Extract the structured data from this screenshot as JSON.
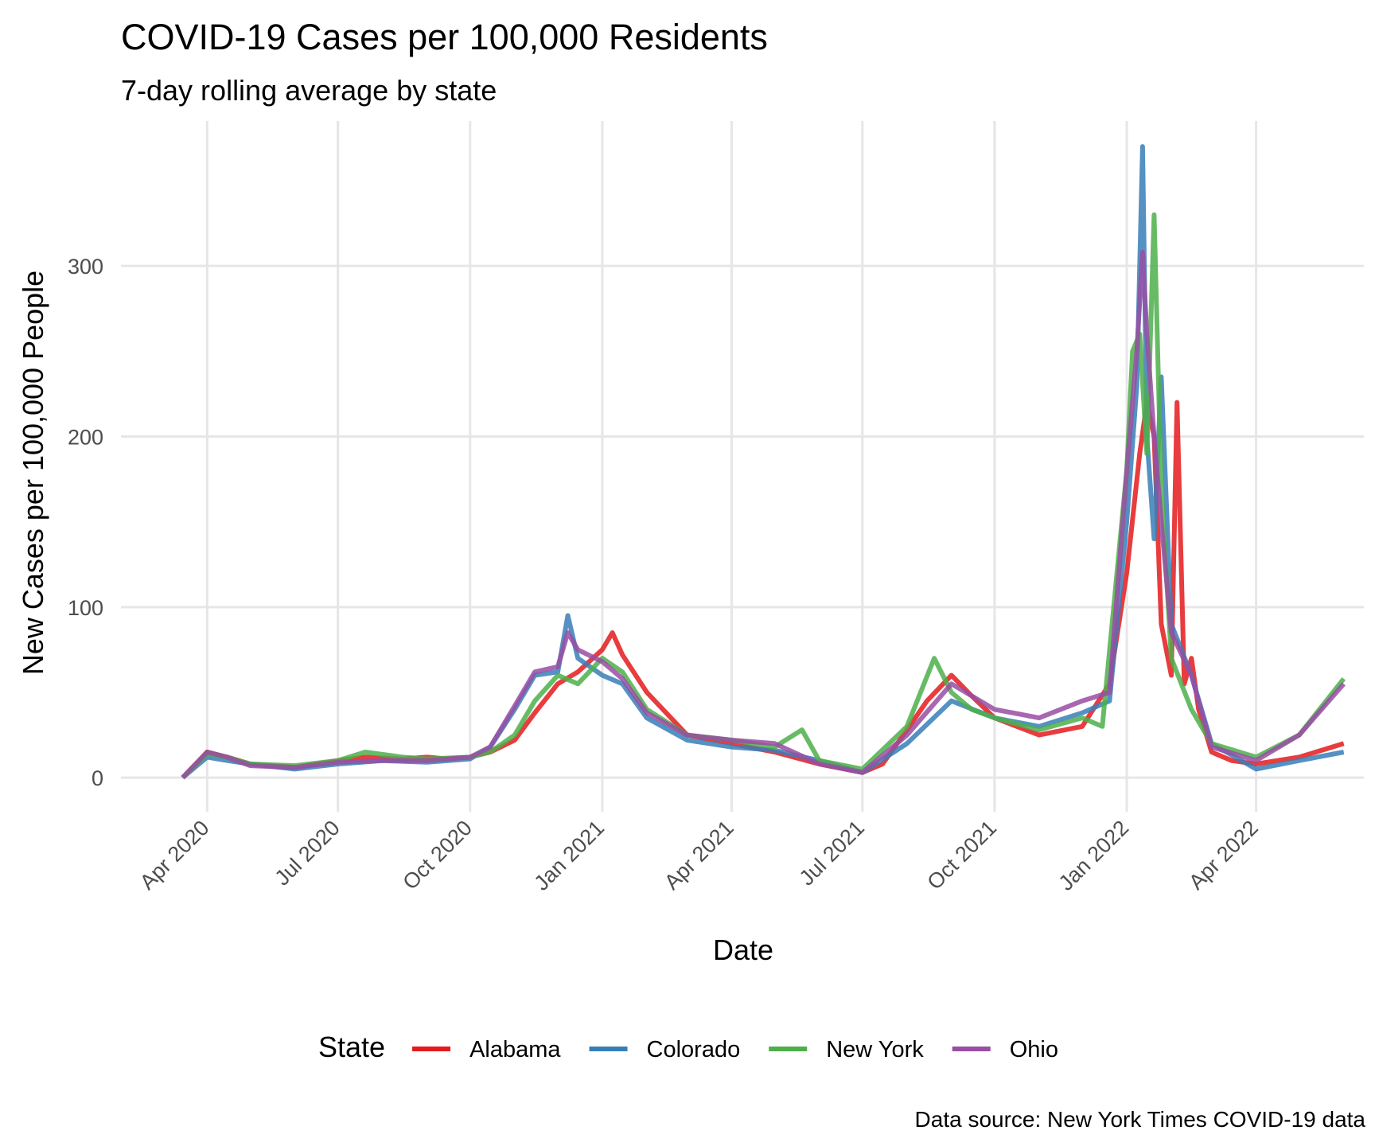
{
  "chart_data": {
    "type": "line",
    "title": "COVID-19 Cases per 100,000 Residents",
    "subtitle": "7-day rolling average by state",
    "xlabel": "Date",
    "ylabel": "New Cases per 100,000 People",
    "caption": "Data source: New York Times COVID-19 data",
    "grid": true,
    "legend_position": "bottom",
    "legend_title": "State",
    "x_ticks": [
      "2020-04-01",
      "2020-07-01",
      "2020-10-01",
      "2021-01-01",
      "2021-04-01",
      "2021-07-01",
      "2021-10-01",
      "2022-01-01",
      "2022-04-01"
    ],
    "x_tick_labels": [
      "Apr 2020",
      "Jul 2020",
      "Oct 2020",
      "Jan 2021",
      "Apr 2021",
      "Jul 2021",
      "Oct 2021",
      "Jan 2022",
      "Apr 2022"
    ],
    "xlim": [
      "2020-02-01",
      "2022-06-15"
    ],
    "y_ticks": [
      0,
      100,
      200,
      300
    ],
    "ylim": [
      -20,
      385
    ],
    "series": [
      {
        "name": "Alabama",
        "color": "#E41A1C",
        "x": [
          "2020-03-15",
          "2020-04-01",
          "2020-04-15",
          "2020-05-01",
          "2020-06-01",
          "2020-07-01",
          "2020-07-20",
          "2020-08-15",
          "2020-09-01",
          "2020-09-15",
          "2020-10-01",
          "2020-10-15",
          "2020-11-01",
          "2020-11-15",
          "2020-12-01",
          "2020-12-15",
          "2021-01-01",
          "2021-01-08",
          "2021-01-15",
          "2021-02-01",
          "2021-03-01",
          "2021-04-01",
          "2021-05-01",
          "2021-06-01",
          "2021-07-01",
          "2021-07-15",
          "2021-08-01",
          "2021-08-15",
          "2021-09-01",
          "2021-09-15",
          "2021-10-01",
          "2021-11-01",
          "2021-12-01",
          "2021-12-20",
          "2022-01-01",
          "2022-01-10",
          "2022-01-15",
          "2022-01-20",
          "2022-01-25",
          "2022-02-01",
          "2022-02-05",
          "2022-02-10",
          "2022-02-15",
          "2022-02-20",
          "2022-03-01",
          "2022-03-15",
          "2022-04-01",
          "2022-05-01",
          "2022-06-01"
        ],
        "y": [
          0,
          15,
          12,
          8,
          6,
          10,
          12,
          11,
          12,
          11,
          12,
          15,
          22,
          38,
          55,
          62,
          75,
          85,
          72,
          50,
          25,
          20,
          15,
          8,
          3,
          8,
          28,
          45,
          60,
          48,
          35,
          25,
          30,
          55,
          120,
          190,
          220,
          200,
          90,
          60,
          220,
          55,
          70,
          40,
          15,
          10,
          8,
          12,
          20
        ]
      },
      {
        "name": "Colorado",
        "color": "#377EB8",
        "x": [
          "2020-03-15",
          "2020-04-01",
          "2020-04-15",
          "2020-05-01",
          "2020-06-01",
          "2020-07-01",
          "2020-08-01",
          "2020-09-01",
          "2020-10-01",
          "2020-10-15",
          "2020-11-01",
          "2020-11-15",
          "2020-12-01",
          "2020-12-08",
          "2020-12-15",
          "2021-01-01",
          "2021-01-15",
          "2021-02-01",
          "2021-03-01",
          "2021-04-01",
          "2021-05-01",
          "2021-06-01",
          "2021-07-01",
          "2021-08-01",
          "2021-09-01",
          "2021-10-01",
          "2021-11-01",
          "2021-12-01",
          "2021-12-20",
          "2022-01-01",
          "2022-01-08",
          "2022-01-12",
          "2022-01-15",
          "2022-01-20",
          "2022-01-25",
          "2022-02-01",
          "2022-02-15",
          "2022-03-01",
          "2022-04-01",
          "2022-05-01",
          "2022-06-01"
        ],
        "y": [
          0,
          12,
          10,
          8,
          5,
          8,
          10,
          9,
          11,
          18,
          40,
          60,
          62,
          95,
          70,
          60,
          55,
          35,
          22,
          18,
          16,
          10,
          3,
          20,
          45,
          35,
          30,
          38,
          45,
          150,
          230,
          370,
          200,
          140,
          235,
          90,
          60,
          20,
          5,
          10,
          15
        ]
      },
      {
        "name": "New York",
        "color": "#4DAF4A",
        "x": [
          "2020-03-15",
          "2020-04-01",
          "2020-04-15",
          "2020-05-01",
          "2020-06-01",
          "2020-07-01",
          "2020-07-20",
          "2020-08-15",
          "2020-09-01",
          "2020-10-01",
          "2020-10-15",
          "2020-11-01",
          "2020-11-15",
          "2020-12-01",
          "2020-12-15",
          "2021-01-01",
          "2021-01-15",
          "2021-02-01",
          "2021-03-01",
          "2021-04-01",
          "2021-05-01",
          "2021-05-20",
          "2021-06-01",
          "2021-07-01",
          "2021-08-01",
          "2021-08-20",
          "2021-09-01",
          "2021-09-15",
          "2021-10-01",
          "2021-11-01",
          "2021-12-01",
          "2021-12-15",
          "2022-01-01",
          "2022-01-05",
          "2022-01-10",
          "2022-01-15",
          "2022-01-20",
          "2022-01-25",
          "2022-02-01",
          "2022-02-15",
          "2022-03-01",
          "2022-04-01",
          "2022-05-01",
          "2022-06-01"
        ],
        "y": [
          0,
          14,
          12,
          8,
          7,
          10,
          15,
          12,
          11,
          12,
          15,
          25,
          45,
          60,
          55,
          70,
          62,
          40,
          25,
          22,
          18,
          28,
          10,
          5,
          30,
          70,
          50,
          40,
          35,
          28,
          35,
          30,
          180,
          250,
          260,
          190,
          330,
          170,
          70,
          40,
          20,
          12,
          25,
          58
        ]
      },
      {
        "name": "Ohio",
        "color": "#984EA3",
        "x": [
          "2020-03-15",
          "2020-04-01",
          "2020-04-15",
          "2020-05-01",
          "2020-06-01",
          "2020-07-01",
          "2020-08-01",
          "2020-09-01",
          "2020-10-01",
          "2020-10-15",
          "2020-11-01",
          "2020-11-15",
          "2020-12-01",
          "2020-12-08",
          "2020-12-15",
          "2021-01-01",
          "2021-01-15",
          "2021-02-01",
          "2021-03-01",
          "2021-04-01",
          "2021-05-01",
          "2021-06-01",
          "2021-07-01",
          "2021-08-01",
          "2021-09-01",
          "2021-10-01",
          "2021-11-01",
          "2021-12-01",
          "2021-12-20",
          "2022-01-01",
          "2022-01-08",
          "2022-01-12",
          "2022-01-15",
          "2022-01-20",
          "2022-01-25",
          "2022-02-01",
          "2022-02-15",
          "2022-03-01",
          "2022-04-01",
          "2022-05-01",
          "2022-06-01"
        ],
        "y": [
          0,
          15,
          12,
          7,
          6,
          9,
          10,
          10,
          12,
          18,
          42,
          62,
          65,
          85,
          75,
          68,
          58,
          38,
          25,
          22,
          20,
          8,
          3,
          25,
          55,
          40,
          35,
          45,
          50,
          180,
          250,
          308,
          260,
          200,
          150,
          85,
          60,
          18,
          10,
          25,
          55
        ]
      }
    ]
  }
}
